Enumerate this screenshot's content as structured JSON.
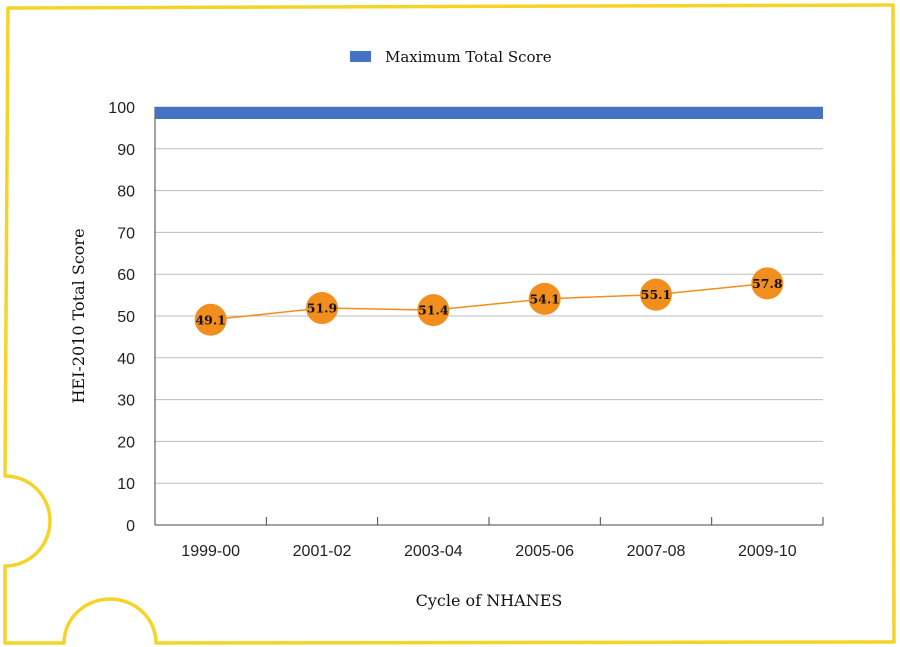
{
  "chart_data": {
    "type": "line",
    "title": "",
    "xlabel": "Cycle of NHANES",
    "ylabel": "HEI-2010 Total Score",
    "categories": [
      "1999-00",
      "2001-02",
      "2003-04",
      "2005-06",
      "2007-08",
      "2009-10"
    ],
    "series": [
      {
        "name": "",
        "values": [
          49.1,
          51.9,
          51.4,
          54.1,
          55.1,
          57.8
        ],
        "color": "#f28e1e"
      }
    ],
    "reference_line": {
      "name": "Maximum Total Score",
      "value": 100,
      "color": "#4472c4"
    },
    "ylim": [
      0,
      100
    ],
    "yticks": [
      0,
      10,
      20,
      30,
      40,
      50,
      60,
      70,
      80,
      90,
      100
    ],
    "ytick_labels": [
      "0",
      "10",
      "20",
      "30",
      "40",
      "50",
      "60",
      "70",
      "80",
      "90",
      "100"
    ],
    "grid": true,
    "legend_position": "top-center",
    "data_labels": [
      "49.1",
      "51.9",
      "51.4",
      "54.1",
      "55.1",
      "57.8"
    ]
  },
  "frame": {
    "border_color": "#f5d327"
  }
}
